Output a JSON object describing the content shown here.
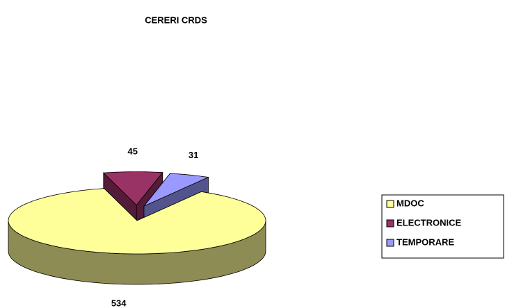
{
  "chart_data": {
    "type": "pie",
    "title": "CERERI CRDS",
    "categories": [
      "MDOC",
      "ELECTRONICE",
      "TEMPORARE"
    ],
    "values": [
      534,
      45,
      31
    ],
    "colors": [
      "#ffff99",
      "#993366",
      "#9999ff"
    ],
    "legend": "right"
  }
}
